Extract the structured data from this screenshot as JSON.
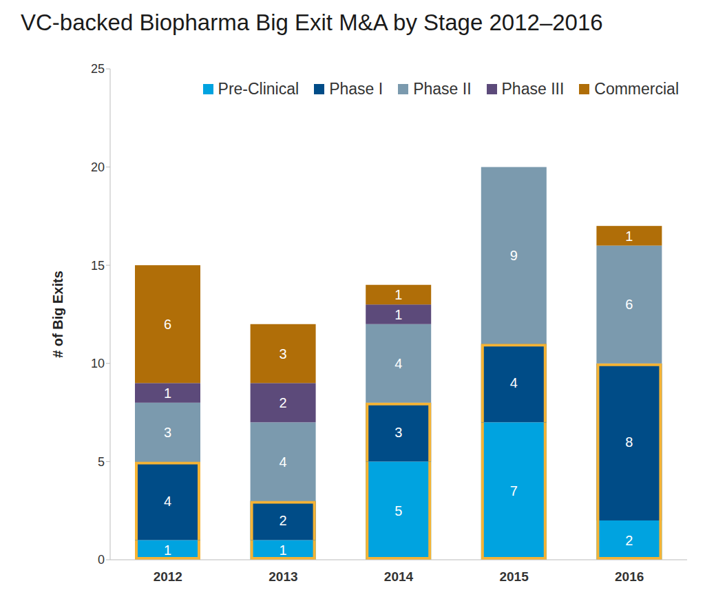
{
  "chart_data": {
    "type": "bar",
    "title": "VC-backed Biopharma Big Exit M&A by Stage 2012–2016",
    "y_label": "# of Big Exits",
    "categories": [
      "2012",
      "2013",
      "2014",
      "2015",
      "2016"
    ],
    "series": [
      {
        "name": "Pre-Clinical",
        "color": "#00a3e0",
        "values": [
          1,
          1,
          5,
          7,
          2
        ]
      },
      {
        "name": "Phase I",
        "color": "#004c87",
        "values": [
          4,
          2,
          3,
          4,
          8
        ]
      },
      {
        "name": "Phase II",
        "color": "#7b9aae",
        "values": [
          3,
          4,
          4,
          9,
          6
        ]
      },
      {
        "name": "Phase III",
        "color": "#5c4a7a",
        "values": [
          1,
          2,
          1,
          null,
          null
        ]
      },
      {
        "name": "Commercial",
        "color": "#b06e08",
        "values": [
          6,
          3,
          1,
          null,
          1
        ]
      }
    ],
    "ylim": [
      0,
      25
    ],
    "yticks": [
      0,
      5,
      10,
      15,
      20,
      25
    ],
    "stacked": true,
    "data_labels": true,
    "legend": "top right",
    "grid": false
  }
}
